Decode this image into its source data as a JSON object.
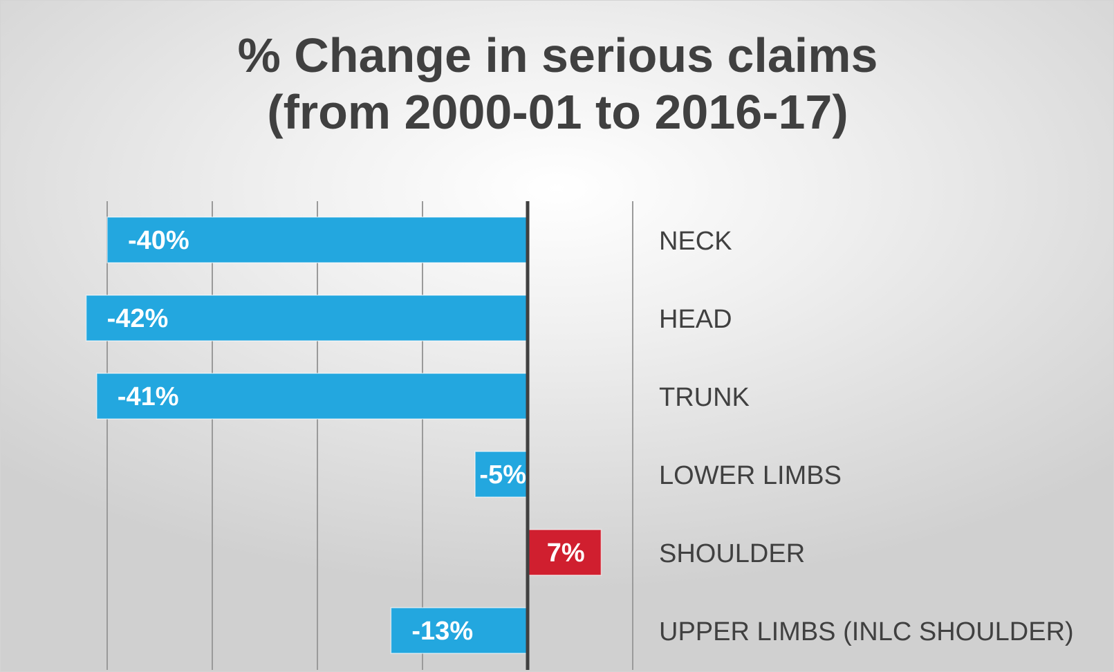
{
  "chart_data": {
    "type": "bar",
    "orientation": "horizontal",
    "title_lines": [
      "% Change in serious claims",
      "(from 2000-01 to 2016-17)"
    ],
    "categories": [
      "NECK",
      "HEAD",
      "TRUNK",
      "LOWER LIMBS",
      "SHOULDER",
      "UPPER LIMBS (INLC SHOULDER)"
    ],
    "values": [
      -40,
      -42,
      -41,
      -5,
      7,
      -13
    ],
    "data_labels": [
      "-40%",
      "-42%",
      "-41%",
      "-5%",
      "7%",
      "-13%"
    ],
    "xlim": [
      -40,
      10
    ],
    "gridlines": [
      -40,
      -30,
      -20,
      -10,
      0,
      10
    ],
    "grid": true,
    "legend": "none",
    "colors": {
      "negative": "#23a7df",
      "positive": "#d01f2f",
      "zero_axis": "#404040",
      "gridline": "#9a9a9a",
      "text": "#404040"
    }
  }
}
